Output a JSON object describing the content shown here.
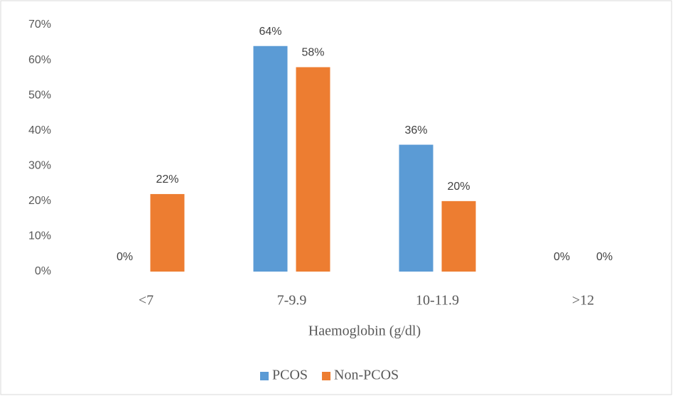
{
  "chart_data": {
    "type": "bar",
    "x_label": "Haemoglobin (g/dl)",
    "categories": [
      "<7",
      "7-9.9",
      "10-11.9",
      ">12"
    ],
    "series": [
      {
        "name": "PCOS",
        "color": "#5b9bd5",
        "values": [
          0,
          64,
          36,
          0
        ],
        "value_labels": [
          "0%",
          "64%",
          "36%",
          "0%"
        ]
      },
      {
        "name": "Non-PCOS",
        "color": "#ed7d31",
        "values": [
          22,
          58,
          20,
          0
        ],
        "value_labels": [
          "22%",
          "58%",
          "20%",
          "0%"
        ]
      }
    ],
    "ylim": [
      0,
      70
    ],
    "yticks": [
      {
        "value": 0,
        "label": "0%"
      },
      {
        "value": 10,
        "label": "10%"
      },
      {
        "value": 20,
        "label": "20%"
      },
      {
        "value": 30,
        "label": "30%"
      },
      {
        "value": 40,
        "label": "40%"
      },
      {
        "value": 50,
        "label": "50%"
      },
      {
        "value": 60,
        "label": "60%"
      },
      {
        "value": 70,
        "label": "70%"
      }
    ],
    "grid": false,
    "legend": "bottom"
  }
}
